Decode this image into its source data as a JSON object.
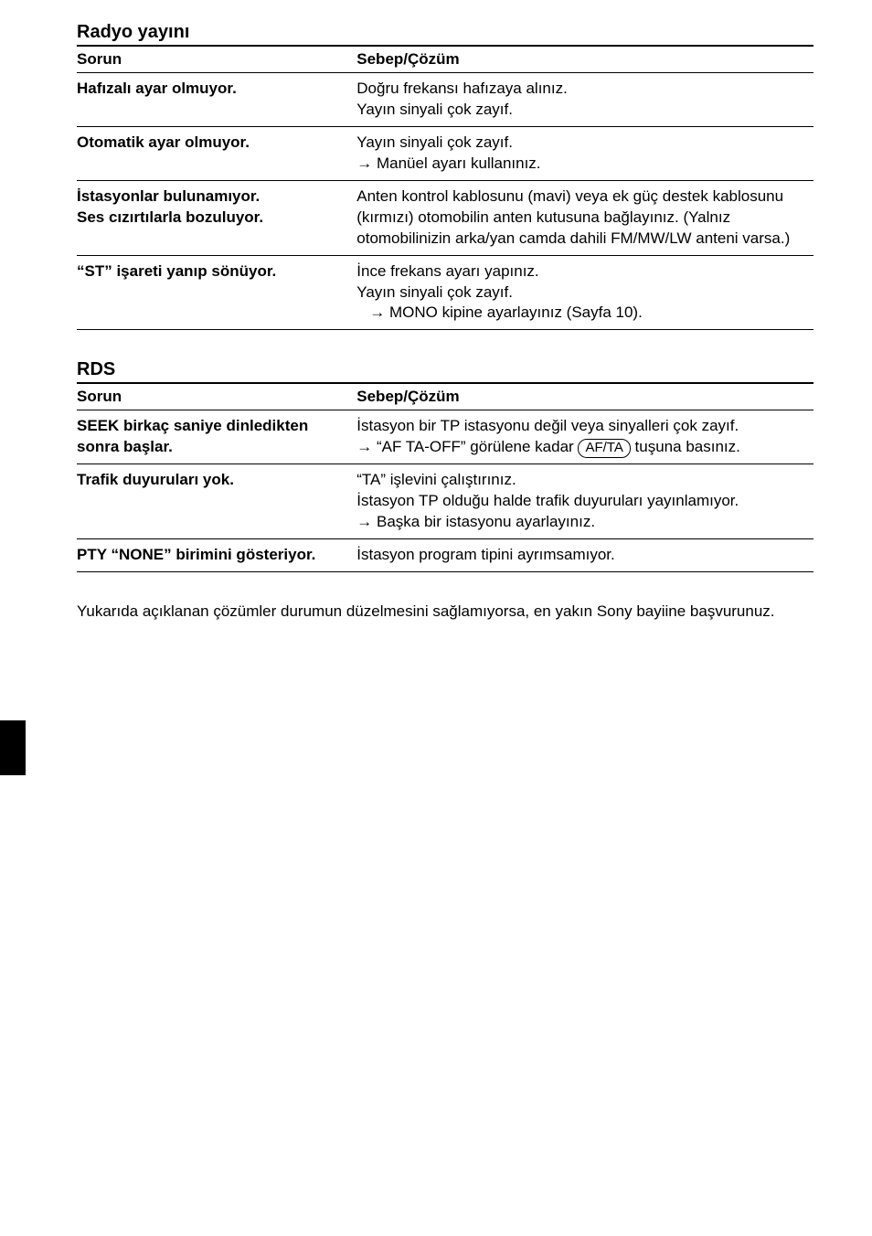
{
  "sections": [
    {
      "title": "Radyo yayını",
      "header_problem": "Sorun",
      "header_solution": "Sebep/Çözüm",
      "rows": [
        {
          "problem": "Hafızalı ayar olmuyor.",
          "solution_lines": [
            {
              "indent": false,
              "parts": [
                {
                  "t": "text",
                  "v": "Doğru frekansı hafızaya alınız."
                }
              ]
            },
            {
              "indent": false,
              "parts": [
                {
                  "t": "text",
                  "v": "Yayın sinyali çok zayıf."
                }
              ]
            }
          ]
        },
        {
          "problem": "Otomatik ayar olmuyor.",
          "solution_lines": [
            {
              "indent": false,
              "parts": [
                {
                  "t": "text",
                  "v": "Yayın sinyali çok zayıf."
                }
              ]
            },
            {
              "indent": false,
              "parts": [
                {
                  "t": "arrow"
                },
                {
                  "t": "text",
                  "v": " Manüel ayarı kullanınız."
                }
              ]
            }
          ]
        },
        {
          "problem": "İstasyonlar bulunamıyor.\nSes cızırtılarla bozuluyor.",
          "solution_lines": [
            {
              "indent": false,
              "parts": [
                {
                  "t": "text",
                  "v": "Anten kontrol kablosunu (mavi) veya ek güç destek kablosunu (kırmızı) otomobilin anten kutusuna bağlayınız. (Yalnız otomobilinizin arka/yan camda dahili FM/MW/LW anteni varsa.)"
                }
              ]
            }
          ]
        },
        {
          "problem": "“ST” işareti yanıp sönüyor.",
          "solution_lines": [
            {
              "indent": false,
              "parts": [
                {
                  "t": "text",
                  "v": "İnce frekans ayarı yapınız."
                }
              ]
            },
            {
              "indent": false,
              "parts": [
                {
                  "t": "text",
                  "v": "Yayın sinyali çok zayıf."
                }
              ]
            },
            {
              "indent": true,
              "parts": [
                {
                  "t": "arrow"
                },
                {
                  "t": "text",
                  "v": " MONO kipine ayarlayınız (Sayfa 10)."
                }
              ]
            }
          ]
        }
      ]
    },
    {
      "title": "RDS",
      "header_problem": "Sorun",
      "header_solution": "Sebep/Çözüm",
      "rows": [
        {
          "problem": "SEEK birkaç saniye dinledikten sonra başlar.",
          "solution_lines": [
            {
              "indent": false,
              "parts": [
                {
                  "t": "text",
                  "v": "İstasyon bir TP istasyonu değil veya sinyalleri çok zayıf."
                }
              ]
            },
            {
              "indent": false,
              "parts": [
                {
                  "t": "arrow"
                },
                {
                  "t": "text",
                  "v": " “AF TA-OFF” görülene kadar "
                },
                {
                  "t": "key",
                  "v": "AF/TA"
                },
                {
                  "t": "text",
                  "v": " tuşuna basınız."
                }
              ]
            }
          ]
        },
        {
          "problem": "Trafik duyuruları yok.",
          "solution_lines": [
            {
              "indent": false,
              "parts": [
                {
                  "t": "text",
                  "v": "“TA” işlevini çalıştırınız."
                }
              ]
            },
            {
              "indent": false,
              "parts": [
                {
                  "t": "text",
                  "v": "İstasyon TP olduğu halde trafik duyuruları yayınlamıyor."
                }
              ]
            },
            {
              "indent": false,
              "parts": [
                {
                  "t": "arrow"
                },
                {
                  "t": "text",
                  "v": " Başka bir istasyonu ayarlayınız."
                }
              ]
            }
          ]
        },
        {
          "problem": "PTY “NONE” birimini gösteriyor.",
          "solution_lines": [
            {
              "indent": false,
              "parts": [
                {
                  "t": "text",
                  "v": "İstasyon program tipini ayrımsamıyor."
                }
              ]
            }
          ]
        }
      ]
    }
  ],
  "footer_note": "Yukarıda açıklanan çözümler durumun düzelmesini sağlamıyorsa, en yakın Sony bayiine başvurunuz.",
  "arrow_glyph": "→",
  "colors": {
    "text": "#000000",
    "background": "#ffffff",
    "rule": "#000000",
    "sidetab": "#000000"
  }
}
